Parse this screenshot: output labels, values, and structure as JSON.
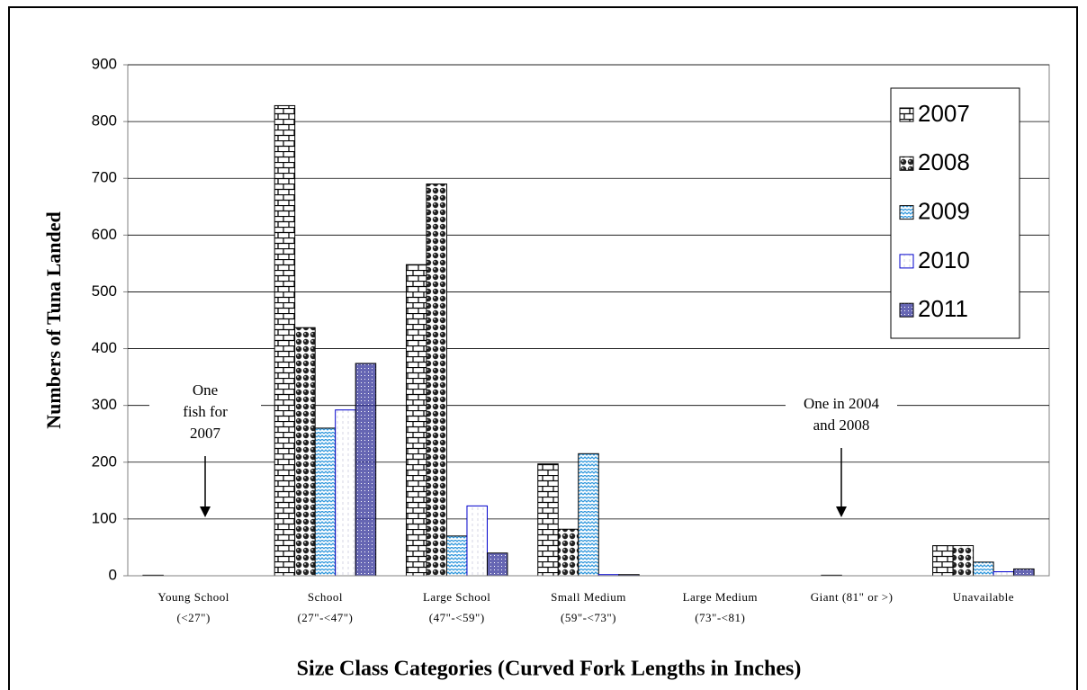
{
  "chart_data": {
    "type": "bar",
    "categories": [
      [
        "Young School",
        "(<27\")"
      ],
      [
        "School",
        "(27\"-<47\")"
      ],
      [
        "Large School",
        "(47\"-<59\")"
      ],
      [
        "Small Medium",
        "(59\"-<73\")"
      ],
      [
        "Large Medium",
        "(73\"-<81)"
      ],
      [
        "Giant (81\" or >)"
      ],
      [
        "Unavailable"
      ]
    ],
    "series": [
      {
        "name": "2007",
        "color": "#000000",
        "values": [
          1,
          828,
          548,
          197,
          0,
          0,
          53
        ]
      },
      {
        "name": "2008",
        "color": "#222222",
        "values": [
          0,
          437,
          690,
          82,
          0,
          1,
          53
        ]
      },
      {
        "name": "2009",
        "color": "#3399dd",
        "values": [
          0,
          260,
          70,
          215,
          0,
          0,
          24
        ]
      },
      {
        "name": "2010",
        "color": "#0000cc",
        "values": [
          0,
          292,
          123,
          2,
          0,
          0,
          7
        ]
      },
      {
        "name": "2011",
        "color": "#333399",
        "values": [
          0,
          374,
          40,
          2,
          0,
          0,
          12
        ]
      }
    ],
    "ylim": [
      0,
      900
    ],
    "yticks": [
      0,
      100,
      200,
      300,
      400,
      500,
      600,
      700,
      800,
      900
    ],
    "grid": true,
    "y_label": "Numbers of Tuna Landed",
    "x_label": "Size Class Categories (Curved Fork Lengths in Inches)",
    "annotations": [
      [
        "One",
        "fish for",
        "2007"
      ],
      [
        "One in 2004",
        "and 2008"
      ]
    ],
    "legend": "upper right"
  }
}
